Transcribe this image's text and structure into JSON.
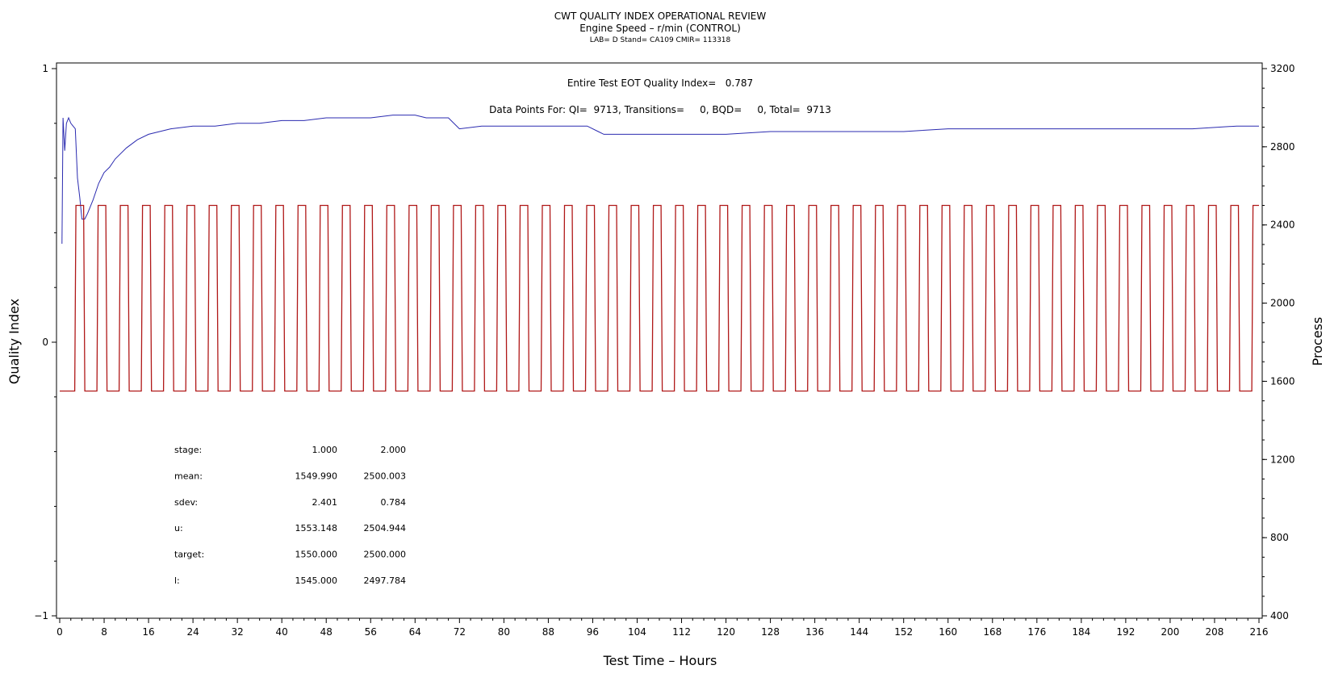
{
  "chart_data": {
    "type": "line",
    "title": "CWT QUALITY INDEX OPERATIONAL REVIEW",
    "subtitle": "Engine Speed – r/min (CONTROL)",
    "subtitle2": "LAB= D Stand= CA109 CMIR= 113318",
    "xlabel": "Test Time – Hours",
    "ylabel_left": "Quality Index",
    "ylabel_right": "Process",
    "xlim": [
      0,
      216
    ],
    "ylim_left": [
      -1,
      1
    ],
    "ylim_right": [
      400,
      3200
    ],
    "x_ticks": [
      "0",
      "8",
      "16",
      "24",
      "32",
      "40",
      "48",
      "56",
      "64",
      "72",
      "80",
      "88",
      "96",
      "104",
      "112",
      "120",
      "128",
      "136",
      "144",
      "152",
      "160",
      "168",
      "176",
      "184",
      "192",
      "200",
      "208",
      "216"
    ],
    "y_left_ticks": [
      "1",
      "0",
      "−1"
    ],
    "y_right_ticks": [
      "3200",
      "2800",
      "2400",
      "2000",
      "1600",
      "1200",
      "800",
      "400"
    ],
    "annotations": {
      "quality_index": "Entire Test EOT Quality Index=   0.787",
      "data_points": "Data Points For: QI=  9713, Transitions=     0, BQD=     0, Total=  9713"
    },
    "grid": false,
    "series": [
      {
        "axis": "left",
        "color": "#2b2bb0",
        "x": [
          0.4,
          0.6,
          0.9,
          1.2,
          1.6,
          2.0,
          2.4,
          2.8,
          3.2,
          3.6,
          4.0,
          4.5,
          5.0,
          6,
          7,
          8,
          9,
          10,
          12,
          14,
          16,
          18,
          20,
          24,
          28,
          32,
          36,
          40,
          44,
          48,
          52,
          56,
          60,
          64,
          66,
          68,
          70,
          72,
          76,
          80,
          84,
          88,
          92,
          95,
          97,
          98,
          100,
          104,
          108,
          112,
          116,
          120,
          128,
          136,
          144,
          152,
          160,
          168,
          176,
          180,
          184,
          188,
          196,
          204,
          212,
          216
        ],
        "y": [
          0.36,
          0.82,
          0.7,
          0.8,
          0.82,
          0.8,
          0.79,
          0.78,
          0.6,
          0.53,
          0.45,
          0.45,
          0.47,
          0.52,
          0.58,
          0.62,
          0.64,
          0.67,
          0.71,
          0.74,
          0.76,
          0.77,
          0.78,
          0.79,
          0.79,
          0.8,
          0.8,
          0.81,
          0.81,
          0.82,
          0.82,
          0.82,
          0.83,
          0.83,
          0.82,
          0.82,
          0.82,
          0.78,
          0.79,
          0.79,
          0.79,
          0.79,
          0.79,
          0.79,
          0.77,
          0.76,
          0.76,
          0.76,
          0.76,
          0.76,
          0.76,
          0.76,
          0.77,
          0.77,
          0.77,
          0.77,
          0.78,
          0.78,
          0.78,
          0.78,
          0.78,
          0.78,
          0.78,
          0.78,
          0.79,
          0.79
        ]
      },
      {
        "axis": "right",
        "color": "#b01818",
        "stage_values": [
          1550,
          2500
        ],
        "cycle_hours": 4,
        "high_start_hours": 2.7,
        "high_duration_hours": 1.6
      }
    ],
    "stats_table": {
      "rows": [
        {
          "label": "stage:",
          "v1": "1.000",
          "v2": "2.000"
        },
        {
          "label": "mean:",
          "v1": "1549.990",
          "v2": "2500.003"
        },
        {
          "label": "sdev:",
          "v1": "2.401",
          "v2": "0.784"
        },
        {
          "label": "u:",
          "v1": "1553.148",
          "v2": "2504.944"
        },
        {
          "label": "target:",
          "v1": "1550.000",
          "v2": "2500.000"
        },
        {
          "label": "l:",
          "v1": "1545.000",
          "v2": "2497.784"
        }
      ]
    }
  }
}
